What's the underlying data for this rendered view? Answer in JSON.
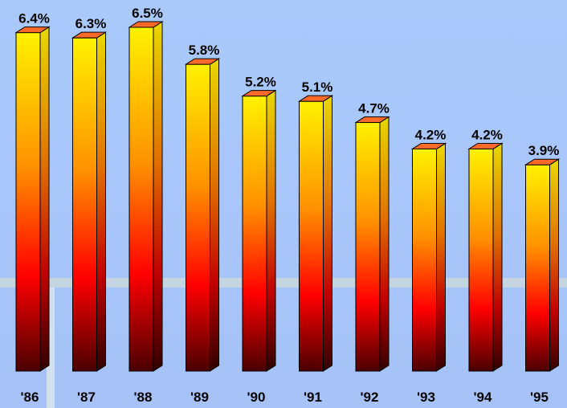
{
  "chart_data": {
    "type": "bar",
    "categories": [
      "'86",
      "'87",
      "'88",
      "'89",
      "'90",
      "'91",
      "'92",
      "'93",
      "'94",
      "'95"
    ],
    "values": [
      6.4,
      6.3,
      6.5,
      5.8,
      5.2,
      5.1,
      4.7,
      4.2,
      4.2,
      3.9
    ],
    "data_labels": [
      "6.4%",
      "6.3%",
      "6.5%",
      "5.8%",
      "5.2%",
      "5.1%",
      "4.7%",
      "4.2%",
      "4.2%",
      "3.9%"
    ],
    "title": "",
    "xlabel": "",
    "ylabel": "",
    "unit": "%",
    "ylim": [
      0,
      6.5
    ],
    "grid": false,
    "legend": "none",
    "style": "3d-gradient-bars",
    "colors": {
      "background_top": "#a9c9fb",
      "background_bottom": "#a6c2f7",
      "bar_top": "#fff200",
      "bar_mid": "#ff0000",
      "bar_bottom": "#4a0000",
      "cap": "#ff6a2a",
      "label": "#000000"
    }
  }
}
